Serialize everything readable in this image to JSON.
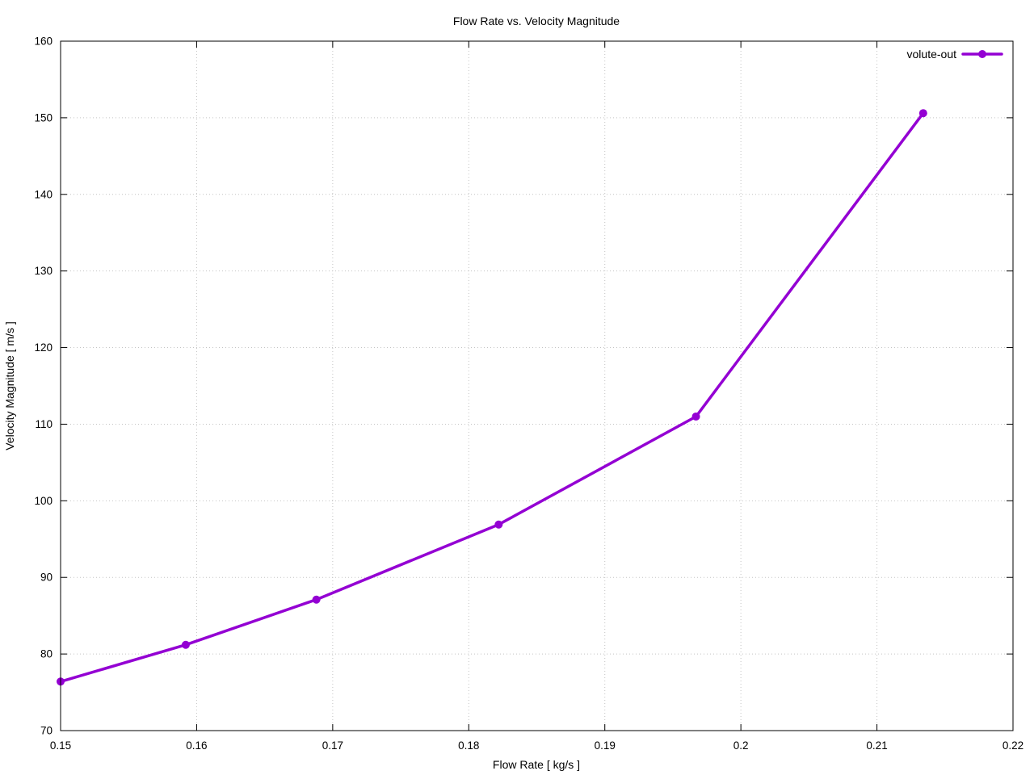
{
  "page": {
    "background_color": "#ffffff",
    "text_color": "#000000"
  },
  "chart_data": {
    "type": "line",
    "title": "Flow Rate vs. Velocity Magnitude",
    "xlabel": "Flow Rate [ kg/s ]",
    "ylabel": "Velocity Magnitude [ m/s ]",
    "xlim": [
      0.15,
      0.22
    ],
    "ylim": [
      70,
      160
    ],
    "xticks": {
      "values": [
        0.15,
        0.16,
        0.17,
        0.18,
        0.19,
        0.2,
        0.21,
        0.22
      ],
      "labels": [
        "0.15",
        "0.16",
        "0.17",
        "0.18",
        "0.19",
        "0.2",
        "0.21",
        "0.22"
      ]
    },
    "yticks": {
      "values": [
        70,
        80,
        90,
        100,
        110,
        120,
        130,
        140,
        150,
        160
      ],
      "labels": [
        "70",
        "80",
        "90",
        "100",
        "110",
        "120",
        "130",
        "140",
        "150",
        "160"
      ]
    },
    "grid": true,
    "grid_style": "dotted",
    "grid_color": "#c4c4c4",
    "axis_color": "#000000",
    "legend_position": "top-right-inside",
    "series": [
      {
        "name": "volute-out",
        "color": "#9400d3",
        "line_width": 3.5,
        "marker": "filled-circle",
        "marker_radius": 5,
        "x": [
          0.15,
          0.1592,
          0.1688,
          0.1822,
          0.1967,
          0.2134
        ],
        "y": [
          76.4,
          81.2,
          87.1,
          96.9,
          111.0,
          150.6
        ]
      }
    ]
  }
}
